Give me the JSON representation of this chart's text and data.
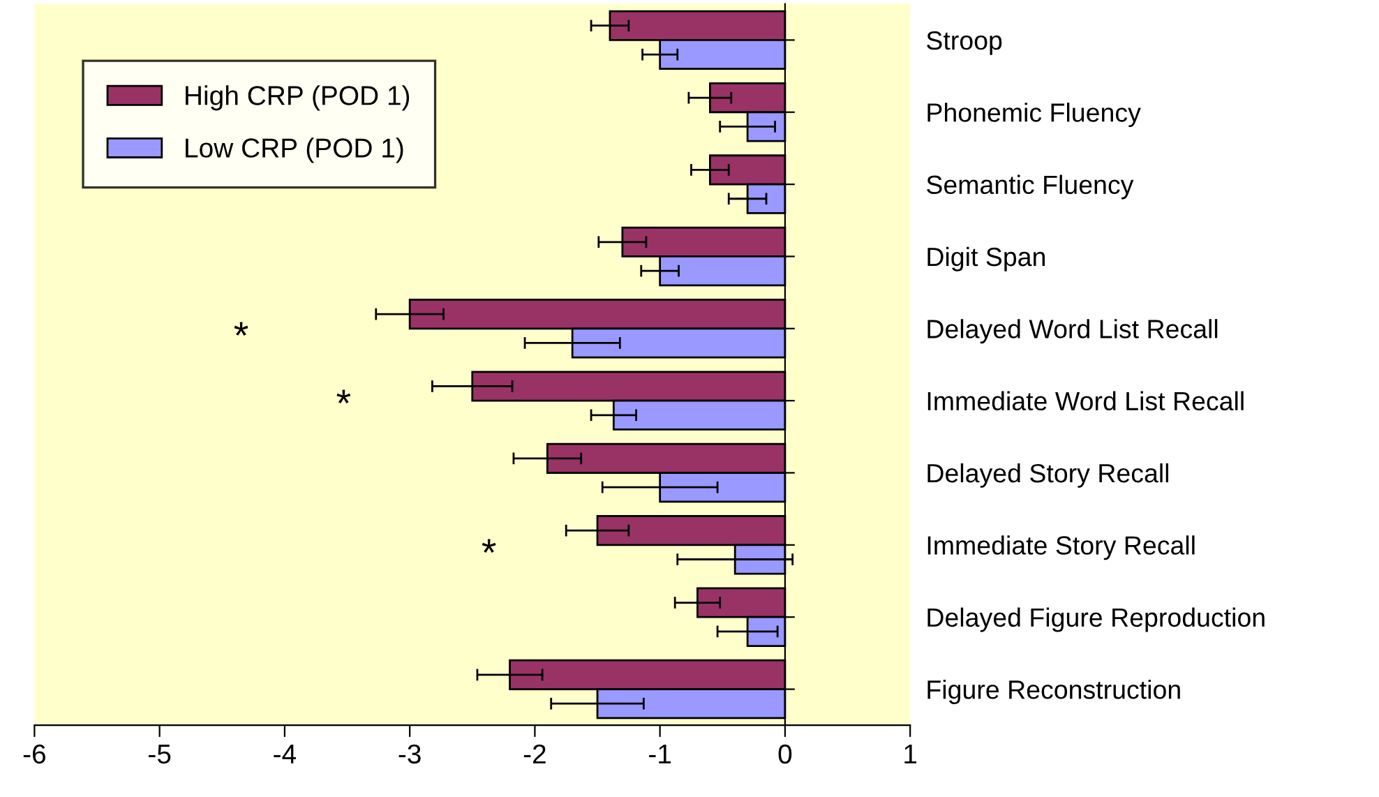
{
  "chart_data": {
    "type": "bar",
    "orientation": "horizontal",
    "categories": [
      "Stroop",
      "Phonemic Fluency",
      "Semantic Fluency",
      "Digit Span",
      "Delayed Word List Recall",
      "Immediate Word List Recall",
      "Delayed Story Recall",
      "Immediate Story Recall",
      "Delayed Figure Reproduction",
      "Figure Reconstruction"
    ],
    "series": [
      {
        "name": "High CRP (POD 1)",
        "color": "#993366",
        "values": [
          -1.4,
          -0.6,
          -0.6,
          -1.3,
          -3.0,
          -2.5,
          -1.9,
          -1.5,
          -0.7,
          -2.2
        ],
        "errors": [
          0.15,
          0.17,
          0.15,
          0.19,
          0.27,
          0.32,
          0.27,
          0.25,
          0.18,
          0.26
        ]
      },
      {
        "name": "Low CRP (POD 1)",
        "color": "#9999ff",
        "values": [
          -1.0,
          -0.3,
          -0.3,
          -1.0,
          -1.7,
          -1.37,
          -1.0,
          -0.4,
          -0.3,
          -1.5
        ],
        "errors": [
          0.14,
          0.22,
          0.15,
          0.15,
          0.38,
          0.18,
          0.46,
          0.46,
          0.24,
          0.37
        ]
      }
    ],
    "xlim": [
      -6,
      1
    ],
    "xticks": [
      -6,
      -5,
      -4,
      -3,
      -2,
      -1,
      0,
      1
    ],
    "annotations": [
      "*",
      "*",
      "*"
    ],
    "legend": "top left"
  }
}
